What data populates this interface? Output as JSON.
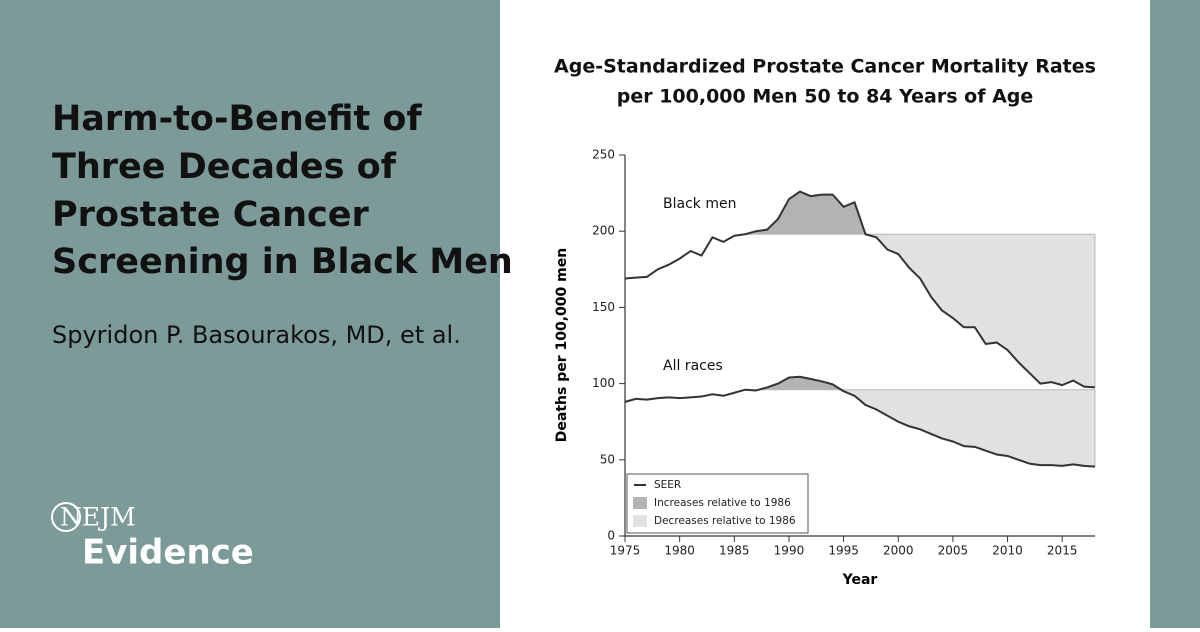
{
  "header": {
    "title_lines": [
      "Harm-to-Benefit of",
      "Three Decades of",
      "Prostate Cancer",
      "Screening in Black Men"
    ],
    "authors": "Spyridon P. Basourakos, MD, et al."
  },
  "logo": {
    "line1": "NEJM",
    "line2": "Evidence"
  },
  "chart_data": {
    "type": "line",
    "title_lines": [
      "Age-Standardized Prostate Cancer Mortality Rates",
      "per 100,000 Men 50 to 84 Years of Age"
    ],
    "x_label": "Year",
    "y_label": "Deaths per 100,000 men",
    "x": [
      1975,
      1976,
      1977,
      1978,
      1979,
      1980,
      1981,
      1982,
      1983,
      1984,
      1985,
      1986,
      1987,
      1988,
      1989,
      1990,
      1991,
      1992,
      1993,
      1994,
      1995,
      1996,
      1997,
      1998,
      1999,
      2000,
      2001,
      2002,
      2003,
      2004,
      2005,
      2006,
      2007,
      2008,
      2009,
      2010,
      2011,
      2012,
      2013,
      2014,
      2015,
      2016,
      2017,
      2018
    ],
    "series": [
      {
        "name": "Black men",
        "color": "#333333",
        "values": [
          169,
          169.5,
          170,
          175,
          178,
          182,
          187,
          184,
          196,
          193,
          197,
          198,
          200,
          201,
          208,
          221,
          226,
          223,
          224,
          224,
          216,
          219,
          198,
          196,
          188,
          185,
          176,
          169,
          157,
          148,
          143,
          137,
          137,
          126,
          127,
          122,
          114,
          107,
          100,
          101,
          99,
          102,
          98,
          97.5
        ]
      },
      {
        "name": "All races",
        "color": "#333333",
        "values": [
          88,
          90,
          89.5,
          90.5,
          91,
          90.5,
          91,
          91.5,
          93,
          92,
          94,
          96,
          95.5,
          97.5,
          100,
          104,
          104.5,
          103,
          101.5,
          99.5,
          95,
          92,
          86,
          83,
          79,
          75,
          72,
          70,
          67,
          64,
          62,
          59,
          58.5,
          56,
          53.5,
          52.5,
          50,
          47.5,
          46.5,
          46.5,
          46,
          47,
          46,
          45.5
        ]
      }
    ],
    "baseline_year": 1986,
    "legend": {
      "position": "lower left",
      "items": [
        {
          "label": "SEER",
          "kind": "line",
          "color": "#333333"
        },
        {
          "label": "Increases relative to 1986",
          "kind": "box",
          "color": "#b3b3b3"
        },
        {
          "label": "Decreases relative to 1986",
          "kind": "box",
          "color": "#e1e1e4"
        }
      ]
    },
    "xlim": [
      1975,
      2018
    ],
    "xticks": [
      1975,
      1980,
      1985,
      1990,
      1995,
      2000,
      2005,
      2010,
      2015
    ],
    "ylim": [
      0,
      250
    ],
    "yticks": [
      0,
      50,
      100,
      150,
      200,
      250
    ]
  }
}
